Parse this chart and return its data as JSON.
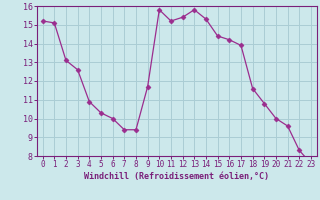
{
  "x": [
    0,
    1,
    2,
    3,
    4,
    5,
    6,
    7,
    8,
    9,
    10,
    11,
    12,
    13,
    14,
    15,
    16,
    17,
    18,
    19,
    20,
    21,
    22,
    23
  ],
  "y": [
    15.2,
    15.1,
    13.1,
    12.6,
    10.9,
    10.3,
    10.0,
    9.4,
    9.4,
    11.7,
    15.8,
    15.2,
    15.4,
    15.8,
    15.3,
    14.4,
    14.2,
    13.9,
    11.6,
    10.8,
    10.0,
    9.6,
    8.3,
    7.6
  ],
  "line_color": "#9b2d8e",
  "marker": "D",
  "marker_size": 2.5,
  "bg_color": "#cce8eb",
  "grid_color": "#aacdd4",
  "axis_color": "#7a1f7a",
  "tick_color": "#7a1f7a",
  "xlabel": "Windchill (Refroidissement éolien,°C)",
  "ylim": [
    8,
    16
  ],
  "xlim": [
    -0.5,
    23.5
  ],
  "yticks": [
    8,
    9,
    10,
    11,
    12,
    13,
    14,
    15,
    16
  ],
  "xticks": [
    0,
    1,
    2,
    3,
    4,
    5,
    6,
    7,
    8,
    9,
    10,
    11,
    12,
    13,
    14,
    15,
    16,
    17,
    18,
    19,
    20,
    21,
    22,
    23
  ],
  "xlabel_fontsize": 6.0,
  "tick_fontsize": 5.5
}
